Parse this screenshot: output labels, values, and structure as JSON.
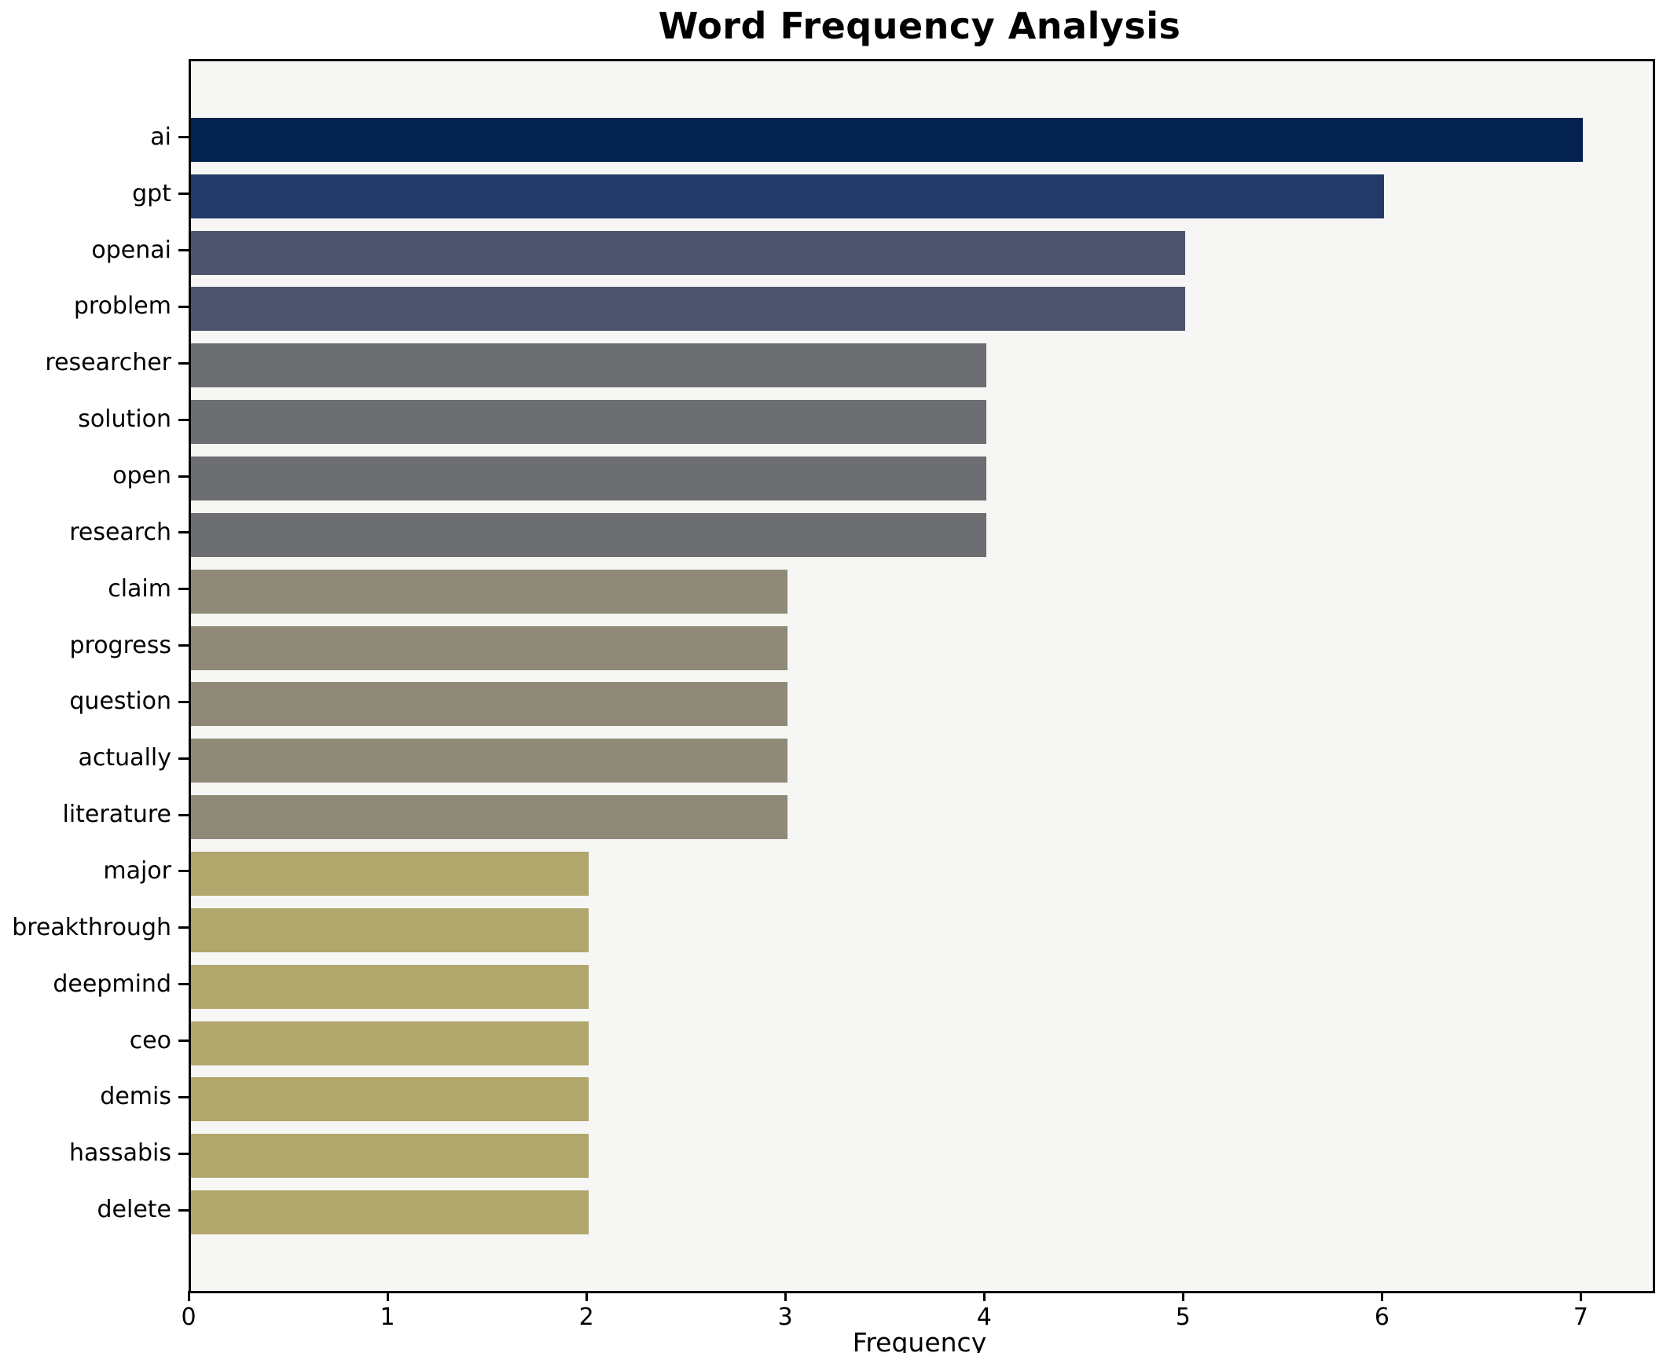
{
  "title": "Word Frequency Analysis",
  "chart_data": {
    "type": "bar",
    "orientation": "horizontal",
    "title": "Word Frequency Analysis",
    "xlabel": "Frequency",
    "ylabel": "",
    "categories": [
      "ai",
      "gpt",
      "openai",
      "problem",
      "researcher",
      "solution",
      "open",
      "research",
      "claim",
      "progress",
      "question",
      "actually",
      "literature",
      "major",
      "breakthrough",
      "deepmind",
      "ceo",
      "demis",
      "hassabis",
      "delete"
    ],
    "values": [
      7,
      6,
      5,
      5,
      4,
      4,
      4,
      4,
      3,
      3,
      3,
      3,
      3,
      2,
      2,
      2,
      2,
      2,
      2,
      2
    ],
    "bar_colors": [
      "#03224f",
      "#223a67",
      "#4c546e",
      "#4c546e",
      "#6d6e72",
      "#6d6e72",
      "#6d6e72",
      "#6d6e72",
      "#8f8a78",
      "#8f8a78",
      "#8f8a78",
      "#8f8a78",
      "#8f8a78",
      "#b1a66c",
      "#b1a66c",
      "#b1a66c",
      "#b1a66c",
      "#b1a66c",
      "#b1a66c",
      "#b1a66c"
    ],
    "xlim": [
      0,
      7.35
    ],
    "x_ticks": [
      0,
      1,
      2,
      3,
      4,
      5,
      6,
      7
    ],
    "x_tick_labels": [
      "0",
      "1",
      "2",
      "3",
      "4",
      "5",
      "6",
      "7"
    ],
    "grid": false,
    "legend": null,
    "plot_bg": "#f6f6f4",
    "fig_bg": "#ffffff",
    "spine_color": "#000000"
  }
}
